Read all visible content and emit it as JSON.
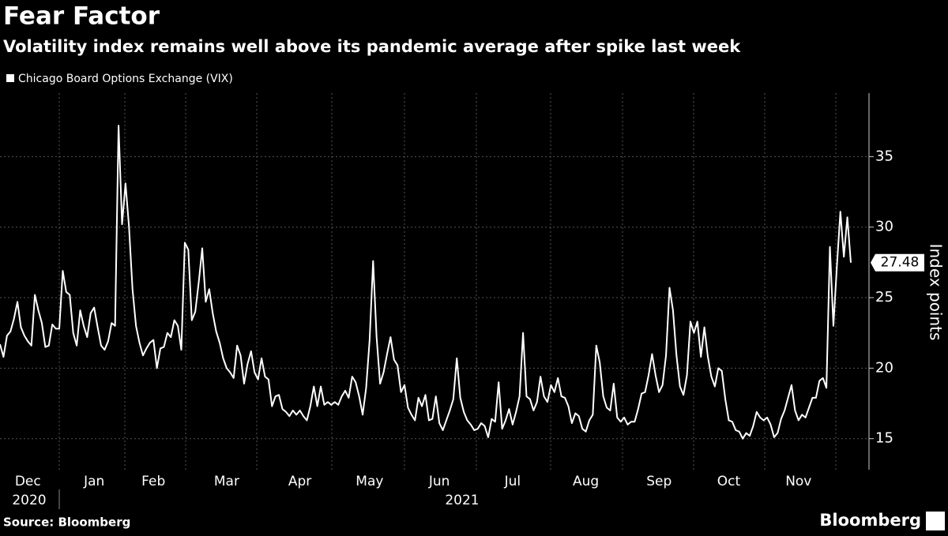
{
  "chart_data": {
    "type": "line",
    "title": "Fear Factor",
    "subtitle": "Volatility index remains well above its pandemic average after spike last week",
    "y_label": "Index points",
    "source": "Source: Bloomberg",
    "brand": "Bloomberg",
    "years": [
      "2020",
      "2021"
    ],
    "categories": [
      null,
      null,
      null,
      null,
      null,
      null,
      null,
      null,
      "Dec",
      null,
      null,
      null,
      null,
      null,
      null,
      null,
      null,
      null,
      null,
      null,
      null,
      null,
      null,
      null,
      null,
      null,
      null,
      "Jan",
      null,
      null,
      null,
      null,
      null,
      null,
      null,
      null,
      null,
      null,
      null,
      null,
      null,
      null,
      null,
      null,
      "Feb",
      null,
      null,
      null,
      null,
      null,
      null,
      null,
      null,
      null,
      null,
      null,
      null,
      null,
      null,
      null,
      null,
      null,
      null,
      null,
      null,
      "Mar",
      null,
      null,
      null,
      null,
      null,
      null,
      null,
      null,
      null,
      null,
      null,
      null,
      null,
      null,
      null,
      null,
      null,
      null,
      null,
      null,
      "Apr",
      null,
      null,
      null,
      null,
      null,
      null,
      null,
      null,
      null,
      null,
      null,
      null,
      null,
      null,
      null,
      null,
      null,
      null,
      null,
      "May",
      null,
      null,
      null,
      null,
      null,
      null,
      null,
      null,
      null,
      null,
      null,
      null,
      null,
      null,
      null,
      null,
      null,
      null,
      null,
      "Jun",
      null,
      null,
      null,
      null,
      null,
      null,
      null,
      null,
      null,
      null,
      null,
      null,
      null,
      null,
      null,
      null,
      null,
      null,
      null,
      null,
      "Jul",
      null,
      null,
      null,
      null,
      null,
      null,
      null,
      null,
      null,
      null,
      null,
      null,
      null,
      null,
      null,
      null,
      null,
      null,
      null,
      null,
      "Aug",
      null,
      null,
      null,
      null,
      null,
      null,
      null,
      null,
      null,
      null,
      null,
      null,
      null,
      null,
      null,
      null,
      null,
      null,
      null,
      null,
      "Sep",
      null,
      null,
      null,
      null,
      null,
      null,
      null,
      null,
      null,
      null,
      null,
      null,
      null,
      null,
      null,
      null,
      null,
      null,
      null,
      "Oct",
      null,
      null,
      null,
      null,
      null,
      null,
      null,
      null,
      null,
      null,
      null,
      null,
      null,
      null,
      null,
      null,
      null,
      null,
      null,
      "Nov",
      null,
      null,
      null,
      null,
      null,
      null,
      null,
      null,
      null,
      null,
      null,
      null,
      null,
      null,
      null
    ],
    "series": [
      {
        "name": "Chicago Board Options Exchange (VIX)",
        "color": "#ffffff",
        "values": [
          21.7,
          20.8,
          22.3,
          22.6,
          23.5,
          24.7,
          22.9,
          22.3,
          21.9,
          21.6,
          25.2,
          24.1,
          23.2,
          21.5,
          21.6,
          23.1,
          22.8,
          22.8,
          26.9,
          25.4,
          25.2,
          22.5,
          21.6,
          24.1,
          23.0,
          22.2,
          23.9,
          24.3,
          22.9,
          21.6,
          21.3,
          21.9,
          23.2,
          23.0,
          37.2,
          30.2,
          33.1,
          30.0,
          25.6,
          23.0,
          21.8,
          20.9,
          21.4,
          21.8,
          22.0,
          20.0,
          21.4,
          21.5,
          22.5,
          22.2,
          23.4,
          23.0,
          21.3,
          28.9,
          28.4,
          23.4,
          24.0,
          26.1,
          28.5,
          24.7,
          25.6,
          23.9,
          22.6,
          21.8,
          20.7,
          20.0,
          19.7,
          19.3,
          21.6,
          20.9,
          18.9,
          20.3,
          21.2,
          19.7,
          19.2,
          20.7,
          19.4,
          19.2,
          17.3,
          18.0,
          18.1,
          17.1,
          16.9,
          16.6,
          17.0,
          16.7,
          17.0,
          16.6,
          16.3,
          17.3,
          18.7,
          17.3,
          18.7,
          17.4,
          17.6,
          17.4,
          17.6,
          17.4,
          18.0,
          18.4,
          17.9,
          19.4,
          19.0,
          18.0,
          16.7,
          18.6,
          22.0,
          27.6,
          22.2,
          18.9,
          19.7,
          21.0,
          22.2,
          20.6,
          20.2,
          18.3,
          18.8,
          17.2,
          16.7,
          16.3,
          17.9,
          17.3,
          18.1,
          16.3,
          16.4,
          18.0,
          16.1,
          15.6,
          16.3,
          17.0,
          17.8,
          20.7,
          17.9,
          16.9,
          16.3,
          16.0,
          15.6,
          15.7,
          16.1,
          15.9,
          15.1,
          16.4,
          16.2,
          19.0,
          15.7,
          16.3,
          17.1,
          16.0,
          16.9,
          18.0,
          22.5,
          18.0,
          17.8,
          17.0,
          17.6,
          19.4,
          18.0,
          17.6,
          18.8,
          18.3,
          19.3,
          18.0,
          17.9,
          17.3,
          16.1,
          16.8,
          16.6,
          15.7,
          15.5,
          16.3,
          16.7,
          21.6,
          20.4,
          18.0,
          17.2,
          17.0,
          18.9,
          16.5,
          16.2,
          16.5,
          16.0,
          16.2,
          16.2,
          17.1,
          18.2,
          18.3,
          19.5,
          21.0,
          19.5,
          18.3,
          18.8,
          20.9,
          25.7,
          24.1,
          20.9,
          18.7,
          18.1,
          19.5,
          23.3,
          22.5,
          23.3,
          20.8,
          22.9,
          20.8,
          19.4,
          18.7,
          20.0,
          19.8,
          17.8,
          16.3,
          16.2,
          15.6,
          15.5,
          15.0,
          15.4,
          15.2,
          15.9,
          16.9,
          16.5,
          16.3,
          16.5,
          16.0,
          15.1,
          15.4,
          16.4,
          17.0,
          17.9,
          18.8,
          17.0,
          16.3,
          16.7,
          16.5,
          17.2,
          17.9,
          17.9,
          19.1,
          19.3,
          18.6,
          28.6,
          23.0,
          27.2,
          31.1,
          27.9,
          30.7,
          27.48
        ]
      }
    ],
    "ylim": [
      12.8,
      39.5
    ],
    "yticks": [
      15,
      20,
      25,
      30,
      35
    ],
    "grid": true
  }
}
